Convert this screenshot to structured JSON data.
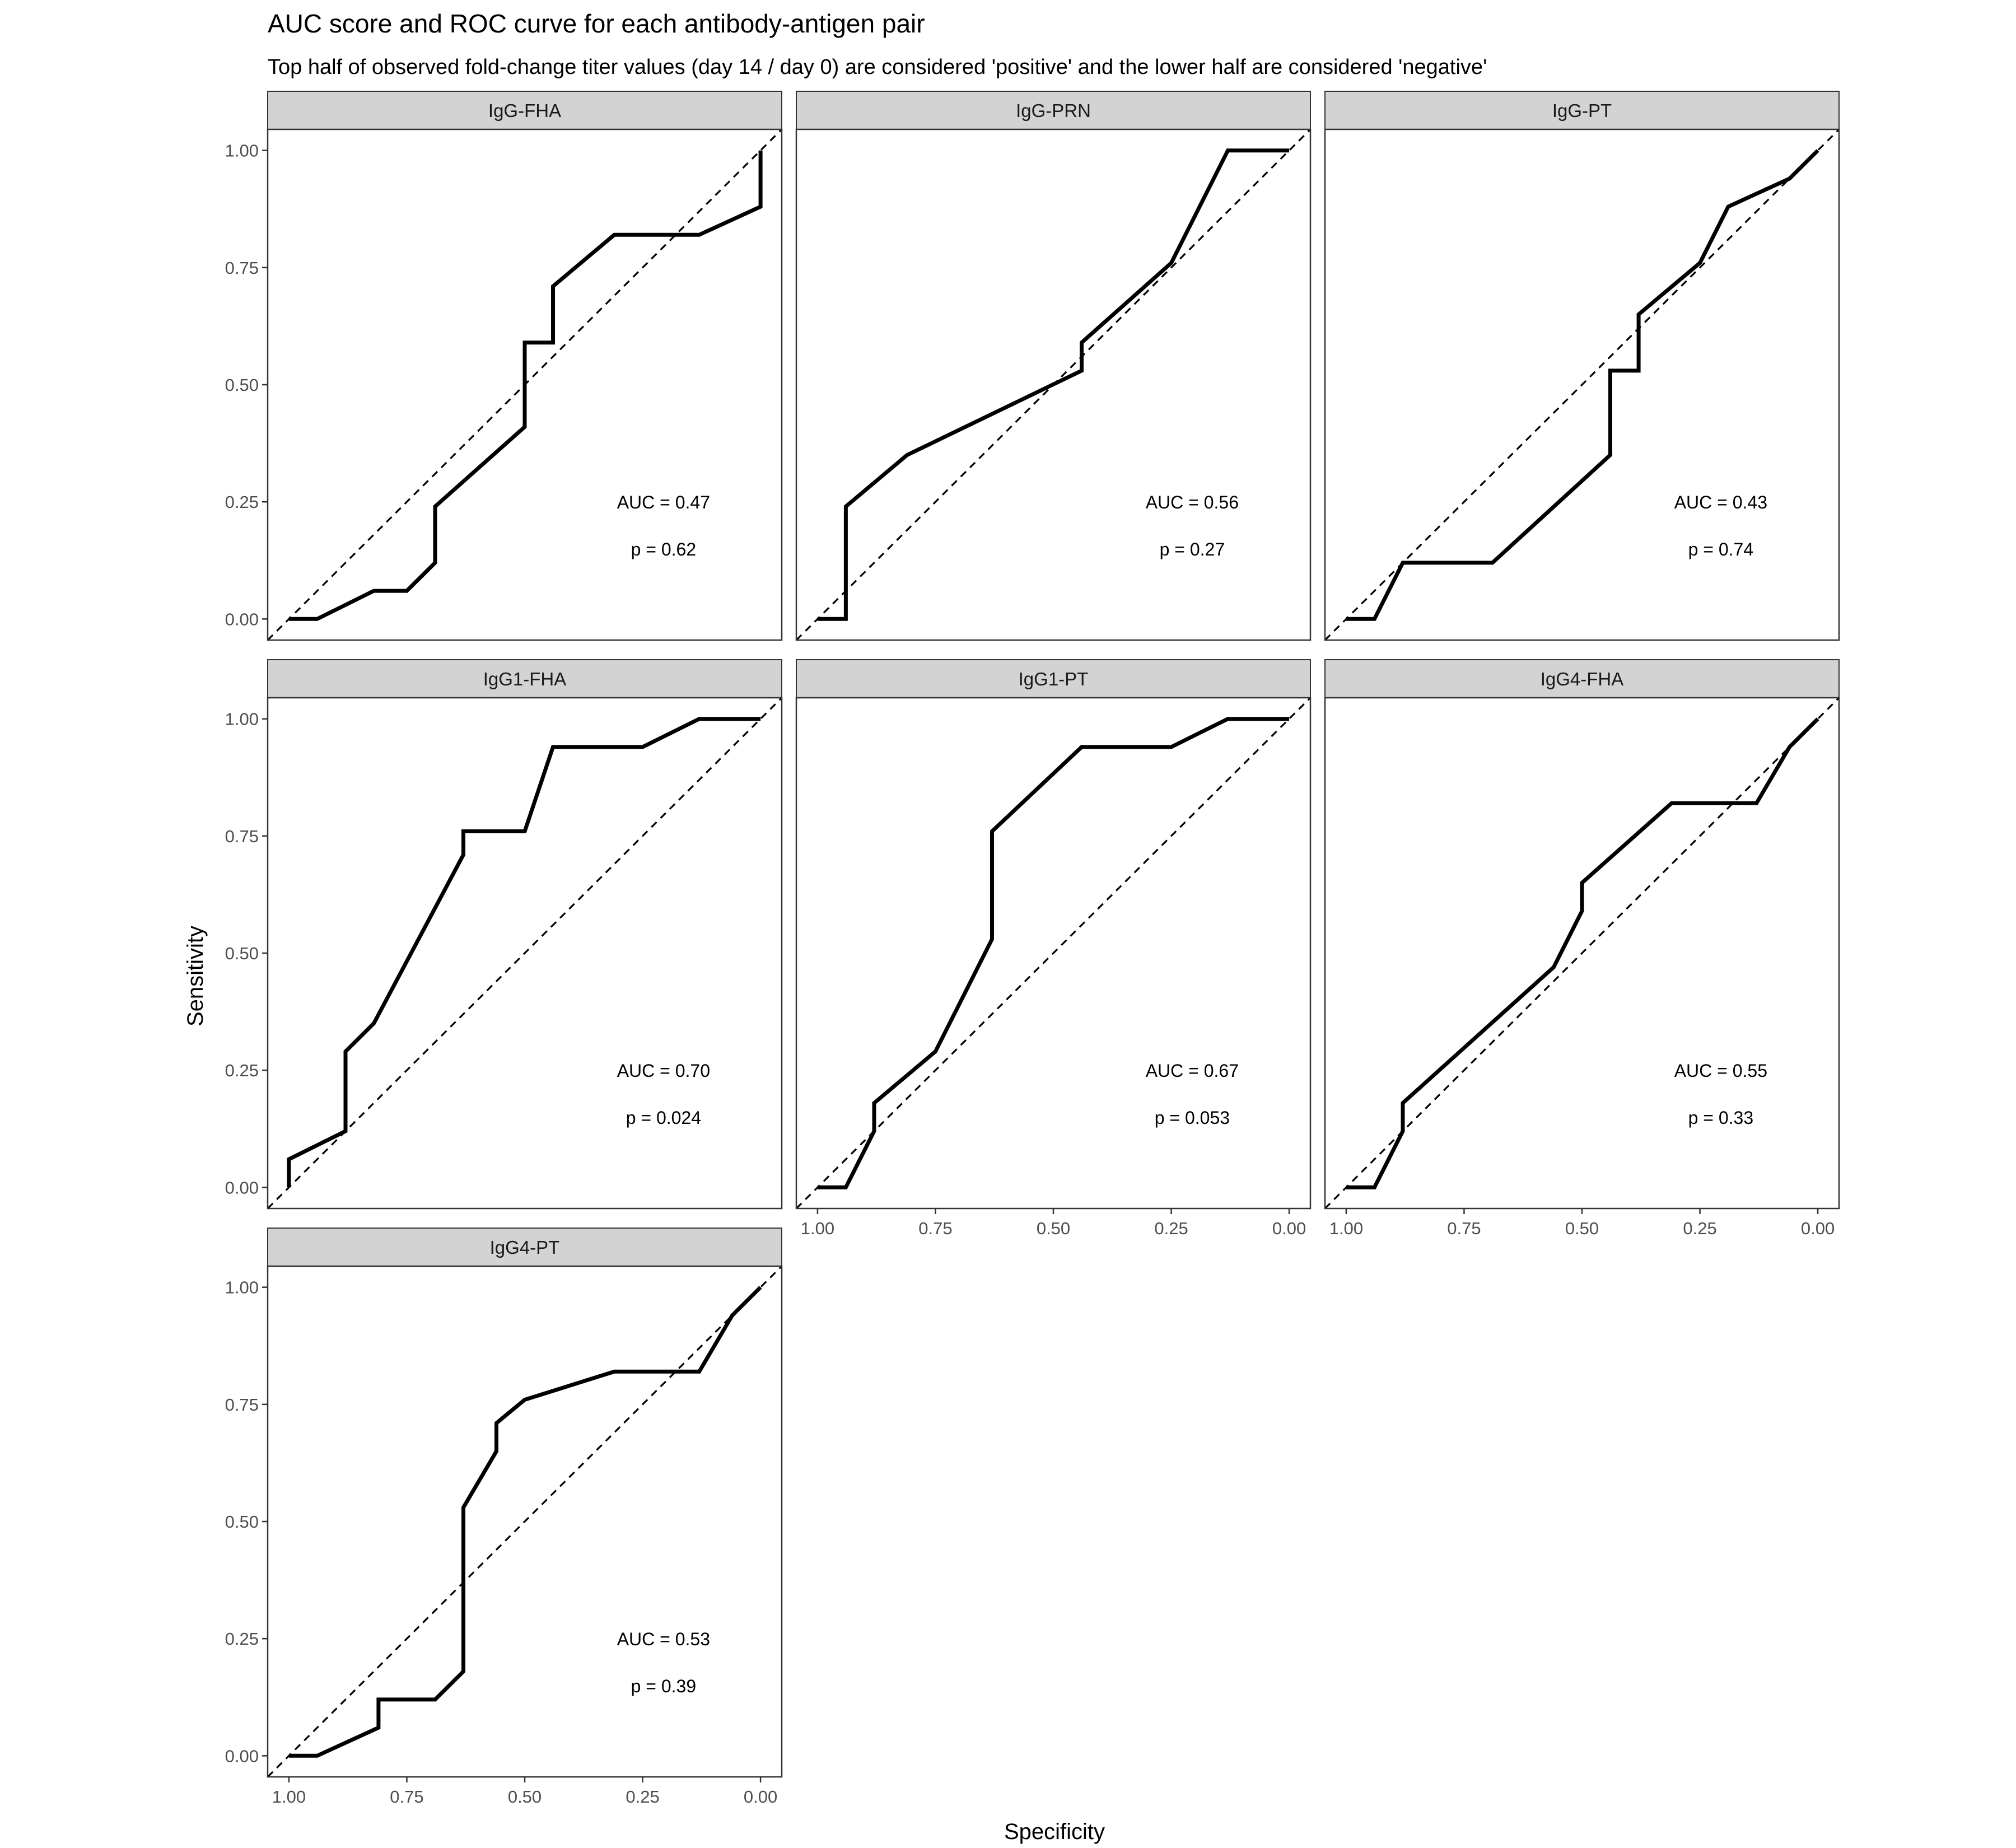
{
  "title": "AUC score and ROC curve for each antibody-antigen pair",
  "subtitle": "Top half of observed fold-change titer values (day 14 / day 0) are considered 'positive' and the lower half are considered 'negative'",
  "xlabel": "Specificity",
  "ylabel": "Sensitivity",
  "colors": {
    "curve": "#000000",
    "strip": "#d3d3d3",
    "panel_border": "#333333",
    "tick_text": "#4d4d4d"
  },
  "chart_data": [
    {
      "type": "line",
      "panel": "IgG-FHA",
      "auc_label": "AUC = 0.47",
      "p_label": "p = 0.62",
      "xlim": [
        1,
        0
      ],
      "ylim": [
        0,
        1
      ],
      "grid": false,
      "x": [
        1.0,
        0.94,
        0.82,
        0.75,
        0.69,
        0.69,
        0.5,
        0.5,
        0.44,
        0.44,
        0.31,
        0.13,
        0.0,
        0.0
      ],
      "y": [
        0.0,
        0.0,
        0.06,
        0.06,
        0.12,
        0.24,
        0.41,
        0.59,
        0.59,
        0.71,
        0.82,
        0.82,
        0.88,
        1.0
      ]
    },
    {
      "type": "line",
      "panel": "IgG-PRN",
      "auc_label": "AUC = 0.56",
      "p_label": "p = 0.27",
      "xlim": [
        1,
        0
      ],
      "ylim": [
        0,
        1
      ],
      "grid": false,
      "x": [
        1.0,
        0.94,
        0.94,
        0.81,
        0.44,
        0.44,
        0.25,
        0.13,
        0.0
      ],
      "y": [
        0.0,
        0.0,
        0.24,
        0.35,
        0.53,
        0.59,
        0.76,
        1.0,
        1.0
      ]
    },
    {
      "type": "line",
      "panel": "IgG-PT",
      "auc_label": "AUC = 0.43",
      "p_label": "p = 0.74",
      "xlim": [
        1,
        0
      ],
      "ylim": [
        0,
        1
      ],
      "grid": false,
      "x": [
        1.0,
        0.94,
        0.88,
        0.69,
        0.44,
        0.44,
        0.38,
        0.38,
        0.25,
        0.19,
        0.06,
        0.0
      ],
      "y": [
        0.0,
        0.0,
        0.12,
        0.12,
        0.35,
        0.53,
        0.53,
        0.65,
        0.76,
        0.88,
        0.94,
        1.0
      ]
    },
    {
      "type": "line",
      "panel": "IgG1-FHA",
      "auc_label": "AUC = 0.70",
      "p_label": "p = 0.024",
      "xlim": [
        1,
        0
      ],
      "ylim": [
        0,
        1
      ],
      "grid": false,
      "x": [
        1.0,
        1.0,
        0.88,
        0.88,
        0.82,
        0.63,
        0.63,
        0.5,
        0.44,
        0.25,
        0.13,
        0.0
      ],
      "y": [
        0.0,
        0.06,
        0.12,
        0.29,
        0.35,
        0.71,
        0.76,
        0.76,
        0.94,
        0.94,
        1.0,
        1.0
      ]
    },
    {
      "type": "line",
      "panel": "IgG1-PT",
      "auc_label": "AUC = 0.67",
      "p_label": "p = 0.053",
      "xlim": [
        1,
        0
      ],
      "ylim": [
        0,
        1
      ],
      "grid": false,
      "x": [
        1.0,
        0.94,
        0.88,
        0.88,
        0.75,
        0.63,
        0.63,
        0.44,
        0.25,
        0.13,
        0.0
      ],
      "y": [
        0.0,
        0.0,
        0.12,
        0.18,
        0.29,
        0.53,
        0.76,
        0.94,
        0.94,
        1.0,
        1.0
      ]
    },
    {
      "type": "line",
      "panel": "IgG4-FHA",
      "auc_label": "AUC = 0.55",
      "p_label": "p = 0.33",
      "xlim": [
        1,
        0
      ],
      "ylim": [
        0,
        1
      ],
      "grid": false,
      "x": [
        1.0,
        0.94,
        0.88,
        0.88,
        0.56,
        0.5,
        0.5,
        0.31,
        0.13,
        0.06,
        0.0
      ],
      "y": [
        0.0,
        0.0,
        0.12,
        0.18,
        0.47,
        0.59,
        0.65,
        0.82,
        0.82,
        0.94,
        1.0
      ]
    },
    {
      "type": "line",
      "panel": "IgG4-PT",
      "auc_label": "AUC = 0.53",
      "p_label": "p = 0.39",
      "xlim": [
        1,
        0
      ],
      "ylim": [
        0,
        1
      ],
      "grid": false,
      "x": [
        1.0,
        0.94,
        0.81,
        0.81,
        0.69,
        0.63,
        0.63,
        0.56,
        0.56,
        0.5,
        0.31,
        0.13,
        0.06,
        0.0
      ],
      "y": [
        0.0,
        0.0,
        0.06,
        0.12,
        0.12,
        0.18,
        0.53,
        0.65,
        0.71,
        0.76,
        0.82,
        0.82,
        0.94,
        1.0
      ]
    }
  ]
}
